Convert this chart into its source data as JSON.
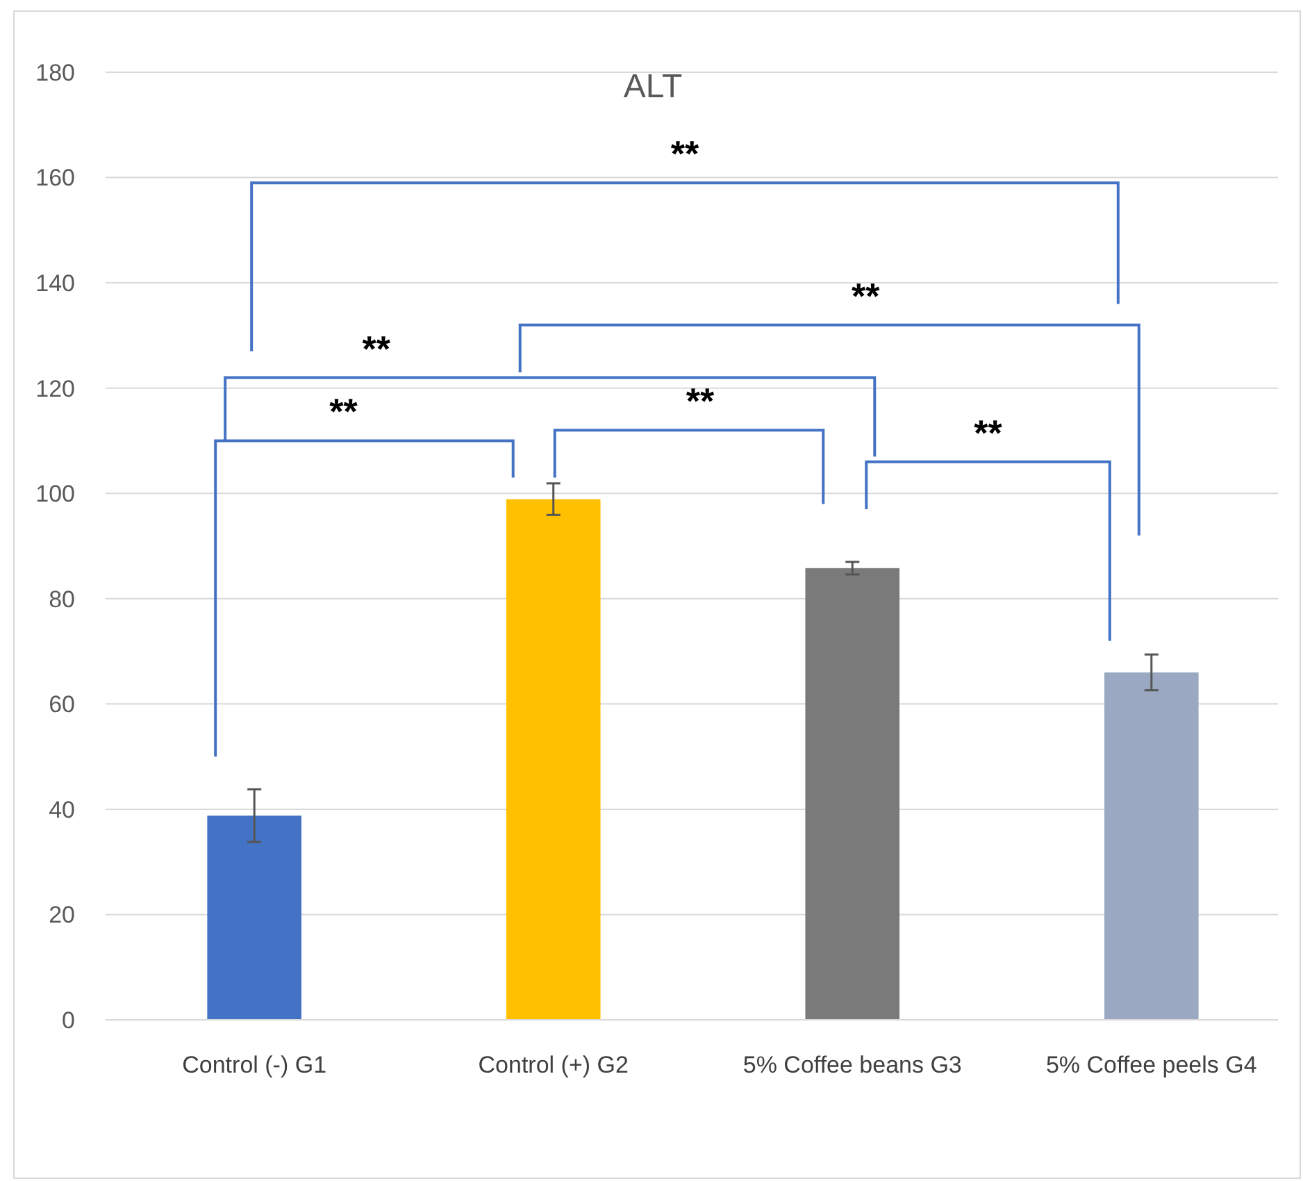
{
  "chart_data": {
    "type": "bar",
    "title": "ALT",
    "categories": [
      "Control (-) G1",
      "Control (+) G2",
      "5% Coffee beans G3",
      "5% Coffee peels G4"
    ],
    "values": [
      38.8,
      98.9,
      85.8,
      66
    ],
    "colors": [
      "#4472c4",
      "#ffc000",
      "#7a7a7a",
      "#9aa9c1"
    ],
    "errors": [
      5,
      3,
      1.2,
      3.4
    ],
    "ylim": [
      0,
      180
    ],
    "yticks": [
      0,
      20,
      40,
      60,
      80,
      100,
      120,
      140,
      160,
      180
    ],
    "grid": "y",
    "annotations": [
      "**",
      "**",
      "**",
      "**",
      "**",
      "**"
    ]
  }
}
